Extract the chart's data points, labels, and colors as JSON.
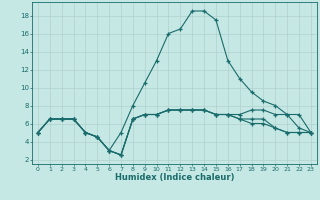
{
  "xlabel": "Humidex (Indice chaleur)",
  "bg_color": "#c5e8e5",
  "grid_color": "#b0d0cc",
  "line_color": "#1a6b6b",
  "xlim": [
    -0.5,
    23.5
  ],
  "ylim": [
    1.5,
    19.5
  ],
  "xticks": [
    0,
    1,
    2,
    3,
    4,
    5,
    6,
    7,
    8,
    9,
    10,
    11,
    12,
    13,
    14,
    15,
    16,
    17,
    18,
    19,
    20,
    21,
    22,
    23
  ],
  "yticks": [
    2,
    4,
    6,
    8,
    10,
    12,
    14,
    16,
    18
  ],
  "series": [
    [
      5.0,
      6.5,
      6.5,
      6.5,
      5.0,
      4.5,
      3.0,
      2.5,
      6.5,
      7.0,
      7.0,
      7.5,
      7.5,
      7.5,
      7.5,
      7.0,
      7.0,
      6.5,
      6.5,
      6.5,
      5.5,
      5.0,
      5.0,
      5.0
    ],
    [
      5.0,
      6.5,
      6.5,
      6.5,
      5.0,
      4.5,
      3.0,
      5.0,
      8.0,
      10.5,
      13.0,
      16.0,
      16.5,
      18.5,
      18.5,
      17.5,
      13.0,
      11.0,
      9.5,
      8.5,
      8.0,
      7.0,
      7.0,
      5.0
    ],
    [
      5.0,
      6.5,
      6.5,
      6.5,
      5.0,
      4.5,
      3.0,
      2.5,
      6.5,
      7.0,
      7.0,
      7.5,
      7.5,
      7.5,
      7.5,
      7.0,
      7.0,
      7.0,
      7.5,
      7.5,
      7.0,
      7.0,
      5.5,
      5.0
    ],
    [
      5.0,
      6.5,
      6.5,
      6.5,
      5.0,
      4.5,
      3.0,
      2.5,
      6.5,
      7.0,
      7.0,
      7.5,
      7.5,
      7.5,
      7.5,
      7.0,
      7.0,
      6.5,
      6.0,
      6.0,
      5.5,
      5.0,
      5.0,
      5.0
    ]
  ]
}
